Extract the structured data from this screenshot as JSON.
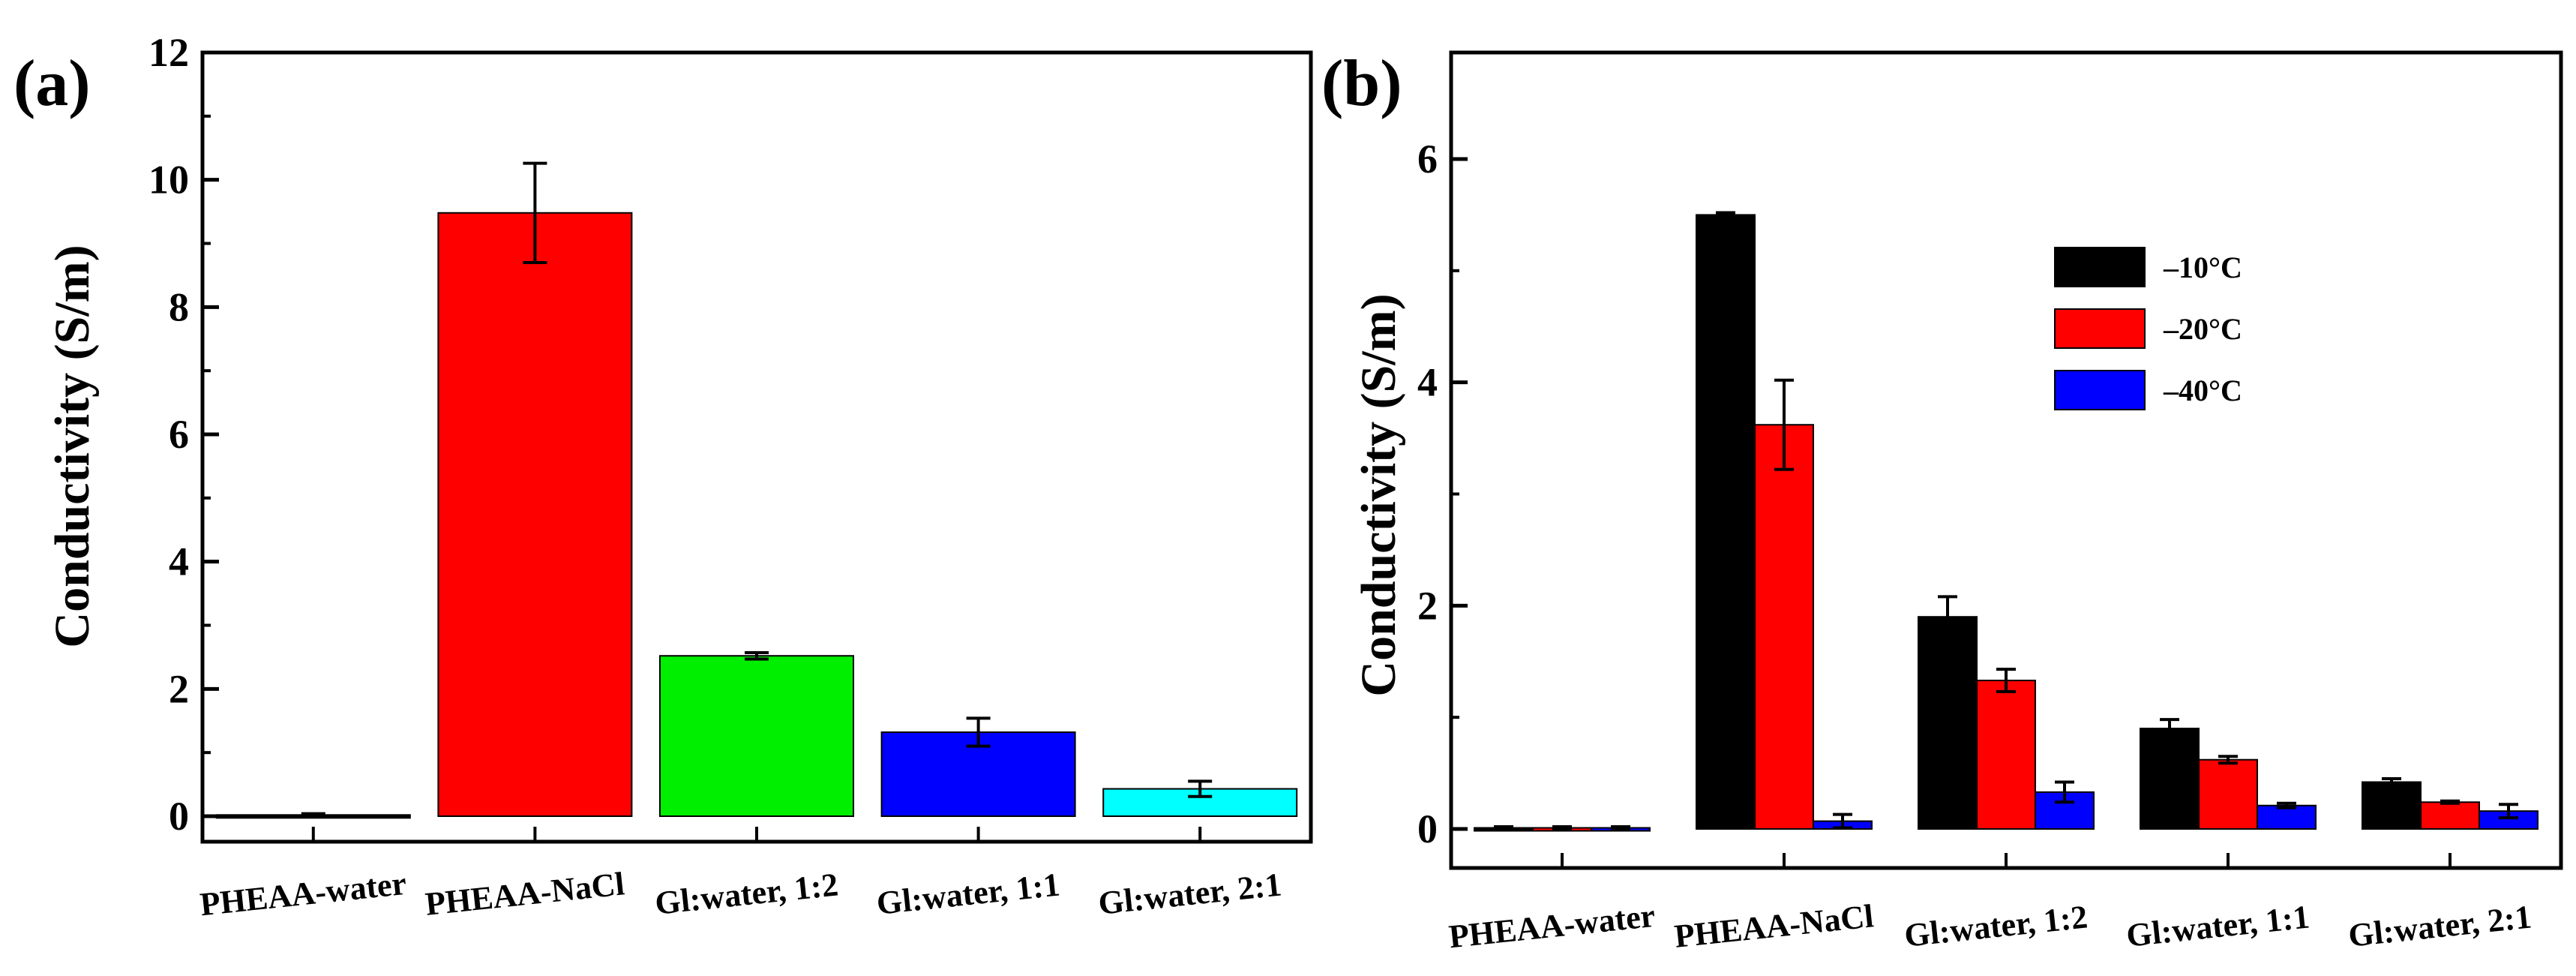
{
  "figure": {
    "panels": [
      {
        "label": "(a)"
      },
      {
        "label": "(b)"
      }
    ]
  },
  "chart_data": [
    {
      "type": "bar",
      "panel": "(a)",
      "title": "",
      "xlabel": "",
      "ylabel": "Conductivity (S/m)",
      "ylim": [
        0,
        12
      ],
      "yticks": [
        0,
        2,
        4,
        6,
        8,
        10,
        12
      ],
      "grid": false,
      "categories": [
        "PHEAA-water",
        "PHEAA-NaCl",
        "Gl:water, 1:2",
        "Gl:water, 1:1",
        "Gl:water, 2:1"
      ],
      "values": [
        0.02,
        9.48,
        2.52,
        1.32,
        0.43
      ],
      "errors": [
        0.02,
        0.78,
        0.05,
        0.22,
        0.12
      ],
      "colors": [
        "#000000",
        "#ff0000",
        "#00ee00",
        "#0000ff",
        "#00ffff"
      ]
    },
    {
      "type": "bar",
      "panel": "(b)",
      "title": "",
      "xlabel": "",
      "ylabel": "Conductivity (S/m)",
      "ylim": [
        -0.2,
        7
      ],
      "yticks": [
        0,
        2,
        4,
        6
      ],
      "grid": false,
      "legend_position": "top-right",
      "categories": [
        "PHEAA-water",
        "PHEAA-NaCl",
        "Gl:water, 1:2",
        "Gl:water, 1:1",
        "Gl:water, 2:1"
      ],
      "series": [
        {
          "name": "–10°C",
          "color": "#000000",
          "values": [
            0.01,
            5.5,
            1.9,
            0.9,
            0.42
          ],
          "errors": [
            0.01,
            0.02,
            0.18,
            0.08,
            0.03
          ]
        },
        {
          "name": "–20°C",
          "color": "#ff0000",
          "values": [
            0.01,
            3.62,
            1.33,
            0.62,
            0.24
          ],
          "errors": [
            0.01,
            0.4,
            0.1,
            0.03,
            0.01
          ]
        },
        {
          "name": "–40°C",
          "color": "#0000ff",
          "values": [
            0.01,
            0.07,
            0.33,
            0.21,
            0.16
          ],
          "errors": [
            0.01,
            0.06,
            0.09,
            0.02,
            0.06
          ]
        }
      ]
    }
  ]
}
